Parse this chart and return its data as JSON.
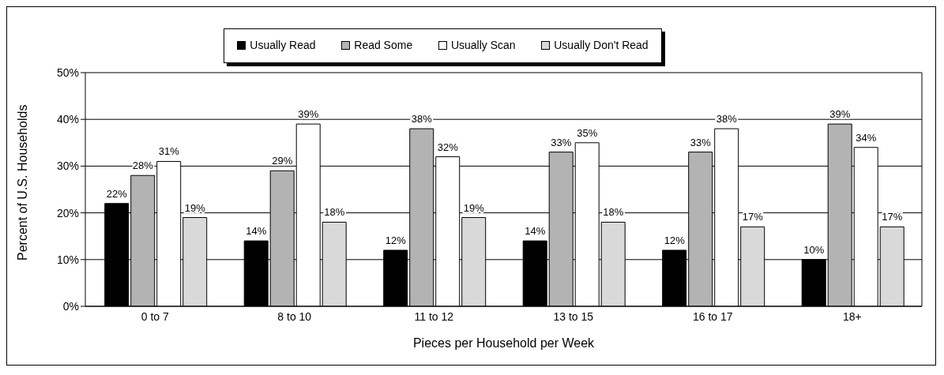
{
  "chart_data": {
    "type": "bar",
    "xlabel": "Pieces per Household per Week",
    "ylabel": "Percent of U.S. Households",
    "categories": [
      "0 to 7",
      "8 to 10",
      "11 to 12",
      "13 to 15",
      "16 to 17",
      "18+"
    ],
    "series": [
      {
        "name": "Usually Read",
        "color": "#000000",
        "values": [
          22,
          14,
          12,
          14,
          12,
          10
        ],
        "value_labels": [
          "22%",
          "14%",
          "12%",
          "14%",
          "12%",
          "10%"
        ]
      },
      {
        "name": "Read Some",
        "color": "#b3b3b3",
        "values": [
          28,
          29,
          38,
          33,
          33,
          39
        ],
        "value_labels": [
          "28%",
          "29%",
          "38%",
          "33%",
          "33%",
          "39%"
        ]
      },
      {
        "name": "Usually Scan",
        "color": "#ffffff",
        "values": [
          31,
          39,
          32,
          35,
          38,
          34
        ],
        "value_labels": [
          "31%",
          "39%",
          "32%",
          "35%",
          "38%",
          "34%"
        ]
      },
      {
        "name": "Usually Don't Read",
        "color": "#d9d9d9",
        "values": [
          19,
          18,
          19,
          18,
          17,
          17
        ],
        "value_labels": [
          "19%",
          "18%",
          "19%",
          "18%",
          "17%",
          "17%"
        ]
      }
    ],
    "ylim": [
      0,
      50
    ],
    "yticks": [
      {
        "value": 0,
        "label": "0%"
      },
      {
        "value": 10,
        "label": "10%"
      },
      {
        "value": 20,
        "label": "20%"
      },
      {
        "value": 30,
        "label": "30%"
      },
      {
        "value": 40,
        "label": "40%"
      },
      {
        "value": 50,
        "label": "50%"
      }
    ],
    "grid": "y",
    "legend": "top"
  }
}
